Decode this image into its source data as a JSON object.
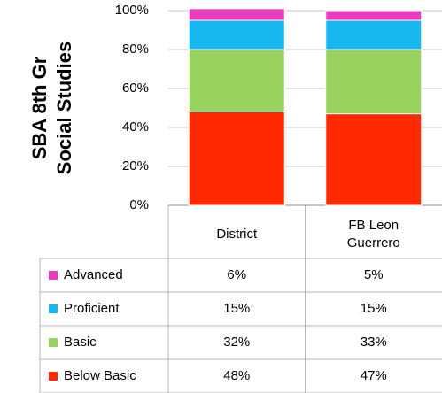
{
  "chart_data": {
    "type": "stacked_bar",
    "title": [
      "SBA 8th Gr",
      "Social Studies"
    ],
    "categories": [
      "District",
      [
        "FB Leon",
        "Guerrero"
      ]
    ],
    "series": [
      {
        "name": "Below Basic",
        "color": "#ff2a00",
        "values": [
          48,
          47
        ],
        "value_labels": [
          "48%",
          "47%"
        ]
      },
      {
        "name": "Basic",
        "color": "#99d35f",
        "values": [
          32,
          33
        ],
        "value_labels": [
          "32%",
          "33%"
        ]
      },
      {
        "name": "Proficient",
        "color": "#17b8f0",
        "values": [
          15,
          15
        ],
        "value_labels": [
          "15%",
          "15%"
        ]
      },
      {
        "name": "Advanced",
        "color": "#e83ebd",
        "values": [
          6,
          5
        ],
        "value_labels": [
          "6%",
          "5%"
        ]
      }
    ],
    "ylim": [
      0,
      100
    ],
    "yticks": [
      {
        "value": 0,
        "label": "0%"
      },
      {
        "value": 20,
        "label": "20%"
      },
      {
        "value": 40,
        "label": "40%"
      },
      {
        "value": 60,
        "label": "60%"
      },
      {
        "value": 80,
        "label": "80%"
      },
      {
        "value": 100,
        "label": "100%"
      }
    ],
    "grid": true
  }
}
